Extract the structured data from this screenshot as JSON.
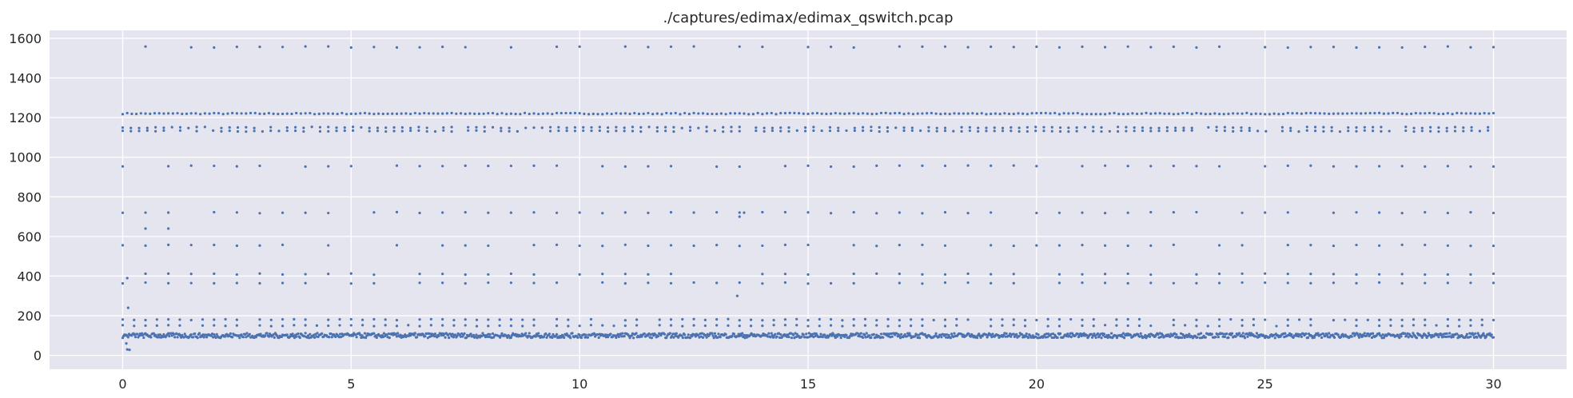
{
  "chart_data": {
    "type": "scatter",
    "title": "./captures/edimax/edimax_qswitch.pcap",
    "xlabel": "",
    "ylabel": "",
    "xlim": [
      -1.6,
      31.6
    ],
    "ylim": [
      -70,
      1640
    ],
    "xticks": [
      0,
      5,
      10,
      15,
      20,
      25,
      30
    ],
    "xtick_labels": [
      "0",
      "5",
      "10",
      "15",
      "20",
      "25",
      "30"
    ],
    "yticks": [
      0,
      200,
      400,
      600,
      800,
      1000,
      1200,
      1400,
      1600
    ],
    "ytick_labels": [
      "0",
      "200",
      "400",
      "600",
      "800",
      "1000",
      "1200",
      "1400",
      "1600"
    ],
    "grid": true,
    "colors": {
      "plot_background": "#e5e5ef",
      "grid": "#ffffff",
      "marker": "#4c72b0",
      "text": "#262626"
    },
    "series": [
      {
        "values": {
          "x_start": 0,
          "x_end": 30,
          "bands": [
            {
              "y": 1220,
              "interval": 0.1
            },
            {
              "y": 1132,
              "interval": 0.18
            },
            {
              "y": 1150,
              "interval": 0.18
            },
            {
              "y": 1556,
              "interval": 0.5
            },
            {
              "y": 955,
              "interval": 0.5
            },
            {
              "y": 720,
              "interval": 0.5
            },
            {
              "y": 555,
              "interval": 0.5
            },
            {
              "y": 410,
              "interval": 0.5
            },
            {
              "y": 365,
              "interval": 0.5
            },
            {
              "y": 180,
              "interval": 0.25
            },
            {
              "y": 150,
              "interval": 0.25
            },
            {
              "y": 100,
              "interval": 0.02
            }
          ],
          "outliers": [
            [
              0.1,
              390
            ],
            [
              0.12,
              240
            ],
            [
              0.1,
              30
            ],
            [
              0.15,
              28
            ],
            [
              0.08,
              60
            ],
            [
              13.45,
              300
            ],
            [
              13.5,
              700
            ],
            [
              13.6,
              720
            ],
            [
              0.5,
              640
            ],
            [
              1.0,
              640
            ]
          ]
        }
      }
    ]
  }
}
